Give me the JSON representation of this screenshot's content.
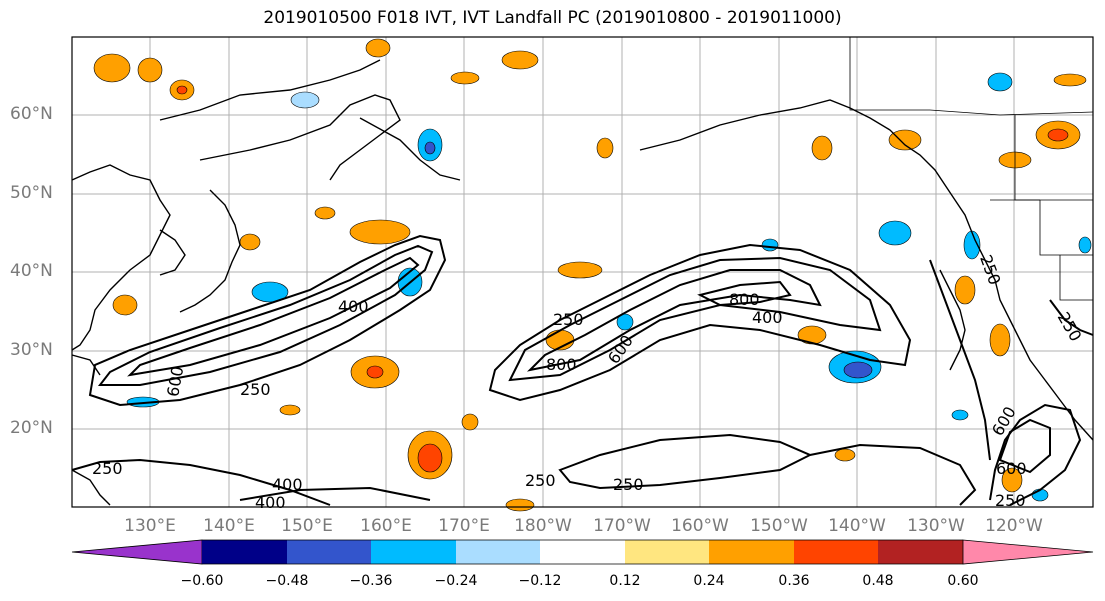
{
  "title": "2019010500 F018 IVT, IVT Landfall PC (2019010800 - 2019011000)",
  "lat_labels": [
    "60°N",
    "50°N",
    "40°N",
    "30°N",
    "20°N"
  ],
  "lon_labels": [
    "130°E",
    "140°E",
    "150°E",
    "160°E",
    "170°E",
    "180°W",
    "170°W",
    "160°W",
    "150°W",
    "140°W",
    "130°W",
    "120°W"
  ],
  "contour_labels": [
    "250",
    "400",
    "600",
    "250",
    "400",
    "800",
    "600",
    "800",
    "400",
    "250",
    "400",
    "250",
    "250",
    "600",
    "250",
    "250",
    "600",
    "250"
  ],
  "colorbar": {
    "ticks": [
      "−0.60",
      "−0.48",
      "−0.36",
      "−0.24",
      "−0.12",
      "0.12",
      "0.24",
      "0.36",
      "0.48",
      "0.60"
    ],
    "colors": [
      "#9933cc",
      "#000088",
      "#3355cc",
      "#00bbff",
      "#aaddff",
      "#ffffff",
      "#ffe680",
      "#ffa000",
      "#ff4400",
      "#b22222",
      "#ff88aa"
    ]
  }
}
